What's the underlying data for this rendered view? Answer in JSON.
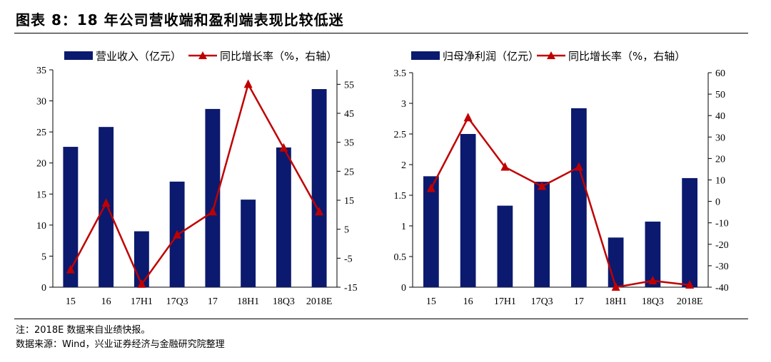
{
  "figure_title": "图表 8：18 年公司营收端和盈利端表现比较低迷",
  "note": "注：2018E 数据来自业绩快报。",
  "source": "数据来源：Wind，兴业证券经济与金融研究院整理",
  "colors": {
    "bar": "#0b1a6e",
    "line": "#c00000",
    "axis": "#000000"
  },
  "chart_data": [
    {
      "type": "bar",
      "categories": [
        "15",
        "16",
        "17H1",
        "17Q3",
        "17",
        "18H1",
        "18Q3",
        "2018E"
      ],
      "series": [
        {
          "name": "营业收入（亿元）",
          "kind": "bar",
          "axis": "left",
          "values": [
            22.6,
            25.8,
            9.0,
            17.0,
            28.7,
            14.1,
            22.5,
            31.9
          ]
        },
        {
          "name": "同比增长率（%，右轴）",
          "kind": "line",
          "axis": "right",
          "values": [
            -9.0,
            14.0,
            -14.0,
            3.0,
            11.0,
            55.0,
            33.0,
            11.0
          ]
        }
      ],
      "ylim_left": [
        0,
        35
      ],
      "yticks_left": [
        "0",
        "5",
        "10",
        "15",
        "20",
        "25",
        "30",
        "35"
      ],
      "ylim_right": [
        -15,
        60
      ],
      "yticks_right": [
        "-15",
        "-5",
        "5",
        "15",
        "25",
        "35",
        "45",
        "55"
      ],
      "legend": "top"
    },
    {
      "type": "bar",
      "categories": [
        "15",
        "16",
        "17H1",
        "17Q3",
        "17",
        "18H1",
        "18Q3",
        "2018E"
      ],
      "series": [
        {
          "name": "归母净利润（亿元）",
          "kind": "bar",
          "axis": "left",
          "values": [
            1.81,
            2.5,
            1.33,
            1.72,
            2.92,
            0.81,
            1.07,
            1.78
          ]
        },
        {
          "name": "同比增长率（%，右轴）",
          "kind": "line",
          "axis": "right",
          "values": [
            6.0,
            39.0,
            16.0,
            7.0,
            16.0,
            -40.0,
            -37.0,
            -39.0
          ]
        }
      ],
      "ylim_left": [
        0,
        3.5
      ],
      "yticks_left": [
        "0",
        "0.5",
        "1",
        "1.5",
        "2",
        "2.5",
        "3",
        "3.5"
      ],
      "ylim_right": [
        -40,
        60
      ],
      "yticks_right": [
        "-40",
        "-30",
        "-20",
        "-10",
        "0",
        "10",
        "20",
        "30",
        "40",
        "50",
        "60"
      ],
      "legend": "top"
    }
  ]
}
